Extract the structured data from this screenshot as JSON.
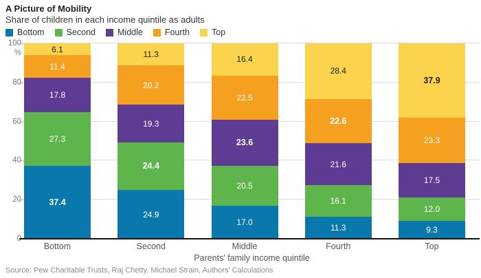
{
  "header": {
    "title": "A Picture of Mobility",
    "subtitle": "Share of children in each income quintile as adults"
  },
  "chart_data": {
    "type": "bar",
    "stacked": true,
    "title": "A Picture of Mobility",
    "subtitle": "Share of children in each income quintile as adults",
    "categories": [
      "Bottom",
      "Second",
      "Middle",
      "Fourth",
      "Top"
    ],
    "series": [
      {
        "name": "Bottom",
        "color": "#0b78ad",
        "label_color": "#ffffff",
        "values": [
          37.4,
          24.9,
          17.0,
          11.3,
          9.3
        ]
      },
      {
        "name": "Second",
        "color": "#5db54c",
        "label_color": "#ffffff",
        "values": [
          27.3,
          24.4,
          20.5,
          16.1,
          12.0
        ]
      },
      {
        "name": "Middle",
        "color": "#5e3c94",
        "label_color": "#ffffff",
        "values": [
          17.8,
          19.3,
          23.6,
          21.6,
          17.5
        ]
      },
      {
        "name": "Fourth",
        "color": "#f5a01e",
        "label_color": "#ffffff",
        "values": [
          11.4,
          20.2,
          22.5,
          22.6,
          23.3
        ]
      },
      {
        "name": "Top",
        "color": "#fcd34c",
        "label_color": "#222222",
        "values": [
          6.1,
          11.3,
          16.4,
          28.4,
          37.9
        ]
      }
    ],
    "highlight_diagonal": true,
    "ylim": [
      0,
      100
    ],
    "yticks": [
      0,
      20,
      40,
      60,
      80,
      100
    ],
    "ytick_labels": [
      "0",
      "20",
      "40",
      "60",
      "80",
      "100 %"
    ],
    "xlabel": "Parents' family income quintile",
    "grid": true,
    "legend_position": "top"
  },
  "source": "Source: Pew Charitable Trusts, Raj Chetty, Michael Strain, Authors' Calculations"
}
